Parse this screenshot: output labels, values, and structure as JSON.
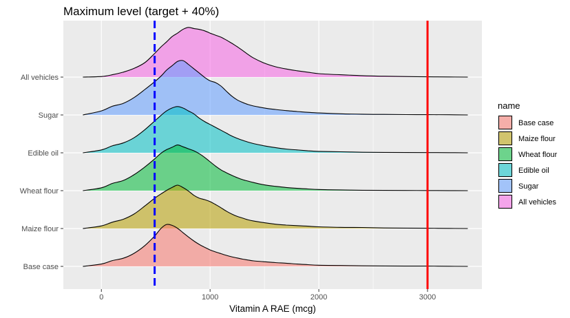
{
  "chart_data": {
    "type": "ridgeline",
    "title": "Maximum level (target + 40%)",
    "xlabel": "Vitamin A RAE (mcg)",
    "ylabel": "",
    "xlim": [
      -350,
      3500
    ],
    "x_ticks": [
      0,
      1000,
      2000,
      3000
    ],
    "x_tick_labels": [
      "0",
      "1000",
      "2000",
      "3000"
    ],
    "reference_lines": [
      {
        "x": 490,
        "color": "#0000FF",
        "style": "dashed"
      },
      {
        "x": 3000,
        "color": "#FF0000",
        "style": "solid"
      }
    ],
    "legend": {
      "title": "name",
      "position": "right"
    },
    "grid": true,
    "density_x": [
      -170,
      0,
      100,
      200,
      300,
      400,
      490,
      550,
      600,
      650,
      700,
      750,
      800,
      850,
      900,
      950,
      1000,
      1050,
      1100,
      1150,
      1200,
      1250,
      1300,
      1350,
      1400,
      1500,
      1600,
      1700,
      1800,
      1900,
      2000,
      2200,
      2400,
      2600,
      2800,
      3000,
      3200,
      3370
    ],
    "series": [
      {
        "name": "Base case",
        "color": "#F8766D",
        "density": [
          0,
          0.08,
          0.2,
          0.28,
          0.45,
          0.72,
          1.05,
          1.32,
          1.45,
          1.42,
          1.32,
          1.17,
          1.02,
          0.88,
          0.76,
          0.66,
          0.57,
          0.5,
          0.44,
          0.38,
          0.33,
          0.29,
          0.25,
          0.22,
          0.19,
          0.16,
          0.13,
          0.11,
          0.08,
          0.06,
          0.04,
          0.03,
          0.02,
          0.015,
          0.01,
          0.01,
          0.005,
          0
        ]
      },
      {
        "name": "Maize flour",
        "color": "#B79F00",
        "density": [
          0,
          0.09,
          0.22,
          0.32,
          0.5,
          0.78,
          1.05,
          1.2,
          1.32,
          1.42,
          1.5,
          1.42,
          1.3,
          1.15,
          1.05,
          1.0,
          0.93,
          0.83,
          0.72,
          0.6,
          0.5,
          0.42,
          0.36,
          0.3,
          0.26,
          0.2,
          0.15,
          0.12,
          0.1,
          0.08,
          0.06,
          0.04,
          0.035,
          0.02,
          0.015,
          0.01,
          0.005,
          0
        ]
      },
      {
        "name": "Wheat flour",
        "color": "#00BA38",
        "density": [
          0,
          0.1,
          0.25,
          0.35,
          0.55,
          0.82,
          1.1,
          1.3,
          1.42,
          1.5,
          1.58,
          1.52,
          1.45,
          1.38,
          1.28,
          1.15,
          1.0,
          0.85,
          0.72,
          0.62,
          0.53,
          0.45,
          0.38,
          0.33,
          0.28,
          0.2,
          0.15,
          0.11,
          0.08,
          0.06,
          0.04,
          0.025,
          0.015,
          0.01,
          0.008,
          0.005,
          0.003,
          0
        ]
      },
      {
        "name": "Edible oil",
        "color": "#00BFC4",
        "density": [
          0,
          0.1,
          0.24,
          0.34,
          0.52,
          0.8,
          1.1,
          1.3,
          1.45,
          1.55,
          1.6,
          1.55,
          1.45,
          1.35,
          1.2,
          1.08,
          0.98,
          0.88,
          0.78,
          0.68,
          0.58,
          0.5,
          0.43,
          0.37,
          0.32,
          0.24,
          0.18,
          0.13,
          0.1,
          0.07,
          0.05,
          0.035,
          0.02,
          0.015,
          0.01,
          0.008,
          0.005,
          0
        ]
      },
      {
        "name": "Sugar",
        "color": "#619CFF",
        "density": [
          0,
          0.14,
          0.3,
          0.4,
          0.6,
          0.88,
          1.15,
          1.35,
          1.55,
          1.7,
          1.85,
          1.88,
          1.75,
          1.6,
          1.45,
          1.3,
          1.18,
          1.12,
          1.0,
          0.82,
          0.65,
          0.52,
          0.43,
          0.36,
          0.31,
          0.24,
          0.19,
          0.15,
          0.12,
          0.09,
          0.07,
          0.04,
          0.025,
          0.018,
          0.012,
          0.01,
          0.006,
          0
        ]
      },
      {
        "name": "All vehicles",
        "color": "#F564E3",
        "density": [
          0,
          0.02,
          0.08,
          0.17,
          0.3,
          0.5,
          0.82,
          1.05,
          1.22,
          1.4,
          1.52,
          1.65,
          1.72,
          1.68,
          1.65,
          1.6,
          1.52,
          1.45,
          1.38,
          1.28,
          1.17,
          1.05,
          0.92,
          0.78,
          0.66,
          0.48,
          0.36,
          0.28,
          0.22,
          0.17,
          0.12,
          0.08,
          0.05,
          0.03,
          0.02,
          0.01,
          0.005,
          0
        ]
      }
    ]
  }
}
